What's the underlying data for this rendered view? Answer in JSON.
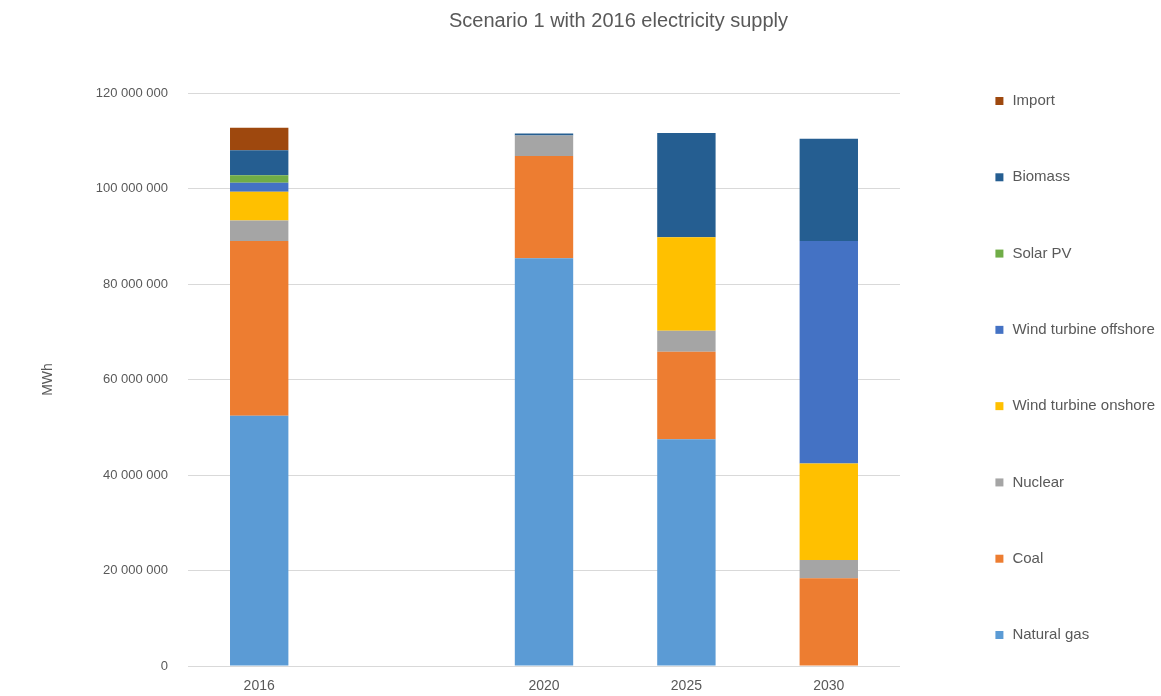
{
  "chart_data": {
    "type": "bar",
    "title": "Scenario 1 with 2016 electricity supply",
    "ylabel": "MWh",
    "categories": [
      "2016",
      null,
      "2020",
      "2025",
      "2030"
    ],
    "stacked": true,
    "series": [
      {
        "name": "Natural gas",
        "color": "#5b9bd5",
        "values": [
          52400000,
          null,
          85400000,
          47500000,
          null
        ]
      },
      {
        "name": "Coal",
        "color": "#ed7d31",
        "values": [
          36600000,
          null,
          21400000,
          18300000,
          18400000
        ]
      },
      {
        "name": "Nuclear",
        "color": "#a5a5a5",
        "values": [
          4300000,
          null,
          4300000,
          4400000,
          3800000
        ]
      },
      {
        "name": "Wind turbine onshore",
        "color": "#ffc000",
        "values": [
          6000000,
          null,
          null,
          19600000,
          20200000
        ]
      },
      {
        "name": "Wind turbine offshore",
        "color": "#4472c4",
        "values": [
          1900000,
          null,
          null,
          null,
          46600000
        ]
      },
      {
        "name": "Solar PV",
        "color": "#70ad47",
        "values": [
          1600000,
          null,
          null,
          null,
          null
        ]
      },
      {
        "name": "Biomass",
        "color": "#255e91",
        "values": [
          5200000,
          null,
          400000,
          21800000,
          21400000
        ]
      },
      {
        "name": "Import",
        "color": "#9e480e",
        "values": [
          4700000,
          null,
          null,
          null,
          null
        ]
      }
    ],
    "ylim": [
      0,
      120000000
    ],
    "yticks": [
      0,
      {
        "value": 20000000,
        "label": "20 000 000"
      },
      {
        "value": 40000000,
        "label": "40 000 000"
      },
      {
        "value": 60000000,
        "label": "60 000 000"
      },
      {
        "value": 80000000,
        "label": "80 000 000"
      },
      {
        "value": 100000000,
        "label": "100 000 000"
      },
      {
        "value": 120000000,
        "label": "120 000 000"
      }
    ],
    "grid": "y",
    "legend": "right"
  }
}
